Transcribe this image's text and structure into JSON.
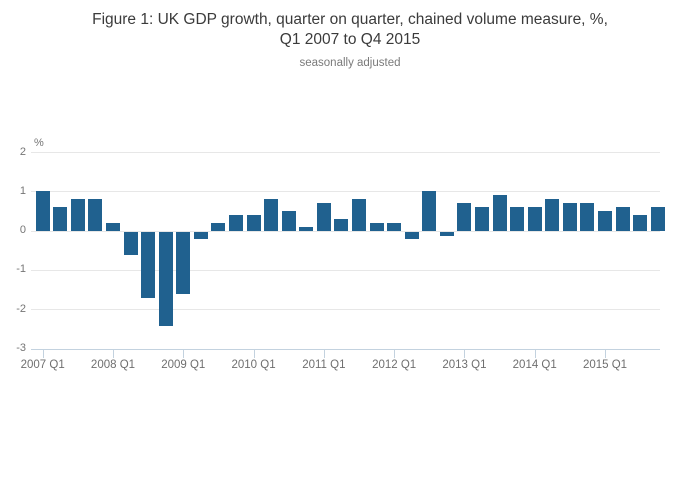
{
  "figure": {
    "title_line1": "Figure 1: UK GDP growth, quarter on quarter, chained volume measure, %,",
    "title_line2": "Q1 2007 to Q4 2015",
    "subtitle": "seasonally adjusted"
  },
  "chart_data": {
    "type": "bar",
    "title": "Figure 1: UK GDP growth, quarter on quarter, chained volume measure, %, Q1 2007 to Q4 2015",
    "subtitle": "seasonally adjusted",
    "unit_label": "%",
    "categories": [
      "2007 Q1",
      "2007 Q2",
      "2007 Q3",
      "2007 Q4",
      "2008 Q1",
      "2008 Q2",
      "2008 Q3",
      "2008 Q4",
      "2009 Q1",
      "2009 Q2",
      "2009 Q3",
      "2009 Q4",
      "2010 Q1",
      "2010 Q2",
      "2010 Q3",
      "2010 Q4",
      "2011 Q1",
      "2011 Q2",
      "2011 Q3",
      "2011 Q4",
      "2012 Q1",
      "2012 Q2",
      "2012 Q3",
      "2012 Q4",
      "2013 Q1",
      "2013 Q2",
      "2013 Q3",
      "2013 Q4",
      "2014 Q1",
      "2014 Q2",
      "2014 Q3",
      "2014 Q4",
      "2015 Q1",
      "2015 Q2",
      "2015 Q3",
      "2015 Q4"
    ],
    "values": [
      1.0,
      0.6,
      0.8,
      0.8,
      0.2,
      -0.6,
      -1.7,
      -2.4,
      -1.6,
      -0.2,
      0.2,
      0.4,
      0.4,
      0.8,
      0.5,
      0.1,
      0.7,
      0.3,
      0.8,
      0.2,
      0.2,
      -0.2,
      1.0,
      -0.1,
      0.7,
      0.6,
      0.9,
      0.6,
      0.6,
      0.8,
      0.7,
      0.7,
      0.5,
      0.6,
      0.4,
      0.6
    ],
    "x_tick_labels": [
      "2007 Q1",
      "2008 Q1",
      "2009 Q1",
      "2010 Q1",
      "2011 Q1",
      "2012 Q1",
      "2013 Q1",
      "2014 Q1",
      "2015 Q1"
    ],
    "y_ticks": [
      2,
      1,
      0,
      -1,
      -2,
      -3
    ],
    "ylim": [
      -3,
      2
    ],
    "xlabel": "",
    "ylabel": "%",
    "grid": true,
    "legend": false,
    "bar_color": "#20618f",
    "gridline_color": "#e7e7e7",
    "axis_line_color": "#c3d2df",
    "title_color": "#3b3b3b",
    "tick_label_color": "#757575"
  }
}
